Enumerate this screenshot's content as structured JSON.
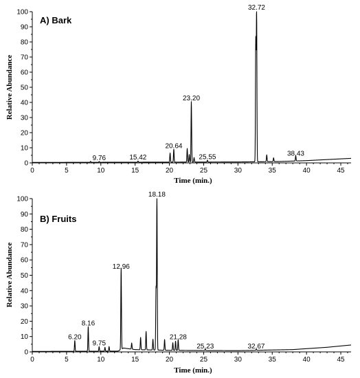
{
  "chart_data": [
    {
      "type": "line",
      "title": "A) Bark",
      "xlabel": "Time (min.)",
      "ylabel": "Relative Abundance",
      "xlim": [
        0,
        46.5
      ],
      "ylim": [
        0,
        100
      ],
      "xticks": [
        0,
        5,
        10,
        15,
        20,
        25,
        30,
        35,
        40,
        45
      ],
      "yticks": [
        0,
        10,
        20,
        30,
        40,
        50,
        60,
        70,
        80,
        90,
        100
      ],
      "peak_labels": [
        {
          "label": "9.76",
          "x": 9.76,
          "y": 0.5
        },
        {
          "label": "15.42",
          "x": 15.42,
          "y": 0.8
        },
        {
          "label": "20.64",
          "x": 20.64,
          "y": 8.5
        },
        {
          "label": "23.20",
          "x": 23.2,
          "y": 40
        },
        {
          "label": "25.55",
          "x": 25.55,
          "y": 1.2
        },
        {
          "label": "32.72",
          "x": 32.72,
          "y": 100
        },
        {
          "label": "38.43",
          "x": 38.43,
          "y": 3.5
        }
      ],
      "peaks": [
        {
          "x": 8.5,
          "y": 0.6
        },
        {
          "x": 9.76,
          "y": 0.5
        },
        {
          "x": 15.42,
          "y": 0.8
        },
        {
          "x": 20.1,
          "y": 6
        },
        {
          "x": 20.64,
          "y": 8.5
        },
        {
          "x": 22.6,
          "y": 9
        },
        {
          "x": 22.9,
          "y": 5
        },
        {
          "x": 23.2,
          "y": 40
        },
        {
          "x": 23.6,
          "y": 3
        },
        {
          "x": 25.55,
          "y": 1.2
        },
        {
          "x": 32.6,
          "y": 80
        },
        {
          "x": 32.72,
          "y": 100
        },
        {
          "x": 34.2,
          "y": 4.5
        },
        {
          "x": 35.2,
          "y": 2.5
        },
        {
          "x": 38.43,
          "y": 3.5
        }
      ],
      "baseline": [
        {
          "x": 0,
          "y": 0.3
        },
        {
          "x": 20,
          "y": 0.5
        },
        {
          "x": 30,
          "y": 0.6
        },
        {
          "x": 36,
          "y": 0.9
        },
        {
          "x": 40,
          "y": 1.5
        },
        {
          "x": 43,
          "y": 2.2
        },
        {
          "x": 46.5,
          "y": 3.0
        }
      ]
    },
    {
      "type": "line",
      "title": "B) Fruits",
      "xlabel": "Time (min.)",
      "ylabel": "Relative Abundance",
      "xlim": [
        0,
        46.5
      ],
      "ylim": [
        0,
        100
      ],
      "xticks": [
        0,
        5,
        10,
        15,
        20,
        25,
        30,
        35,
        40,
        45
      ],
      "yticks": [
        0,
        10,
        20,
        30,
        40,
        50,
        60,
        70,
        80,
        90,
        100
      ],
      "peak_labels": [
        {
          "label": "6.20",
          "x": 6.2,
          "y": 7
        },
        {
          "label": "8.16",
          "x": 8.16,
          "y": 16
        },
        {
          "label": "9.75",
          "x": 9.75,
          "y": 3
        },
        {
          "label": "12.96",
          "x": 12.96,
          "y": 53
        },
        {
          "label": "18.18",
          "x": 18.18,
          "y": 100
        },
        {
          "label": "21.28",
          "x": 21.28,
          "y": 7
        },
        {
          "label": "25.23",
          "x": 25.23,
          "y": 1
        },
        {
          "label": "32.67",
          "x": 32.67,
          "y": 0.8
        }
      ],
      "peaks": [
        {
          "x": 6.2,
          "y": 7
        },
        {
          "x": 8.16,
          "y": 16
        },
        {
          "x": 9.75,
          "y": 3
        },
        {
          "x": 10.6,
          "y": 2.5
        },
        {
          "x": 11.2,
          "y": 3
        },
        {
          "x": 12.96,
          "y": 53
        },
        {
          "x": 14.5,
          "y": 4
        },
        {
          "x": 15.8,
          "y": 8
        },
        {
          "x": 16.6,
          "y": 12
        },
        {
          "x": 17.6,
          "y": 7
        },
        {
          "x": 18.05,
          "y": 40
        },
        {
          "x": 18.18,
          "y": 100
        },
        {
          "x": 19.3,
          "y": 7
        },
        {
          "x": 20.5,
          "y": 5
        },
        {
          "x": 20.9,
          "y": 6
        },
        {
          "x": 21.28,
          "y": 7
        },
        {
          "x": 25.23,
          "y": 1
        },
        {
          "x": 32.67,
          "y": 0.8
        }
      ],
      "baseline": [
        {
          "x": 0,
          "y": 0.3
        },
        {
          "x": 12.5,
          "y": 0.5
        },
        {
          "x": 13.3,
          "y": 2.5
        },
        {
          "x": 15,
          "y": 1.5
        },
        {
          "x": 20,
          "y": 1.0
        },
        {
          "x": 30,
          "y": 0.8
        },
        {
          "x": 38,
          "y": 1.5
        },
        {
          "x": 43,
          "y": 3.0
        },
        {
          "x": 46.5,
          "y": 4.5
        }
      ]
    }
  ]
}
